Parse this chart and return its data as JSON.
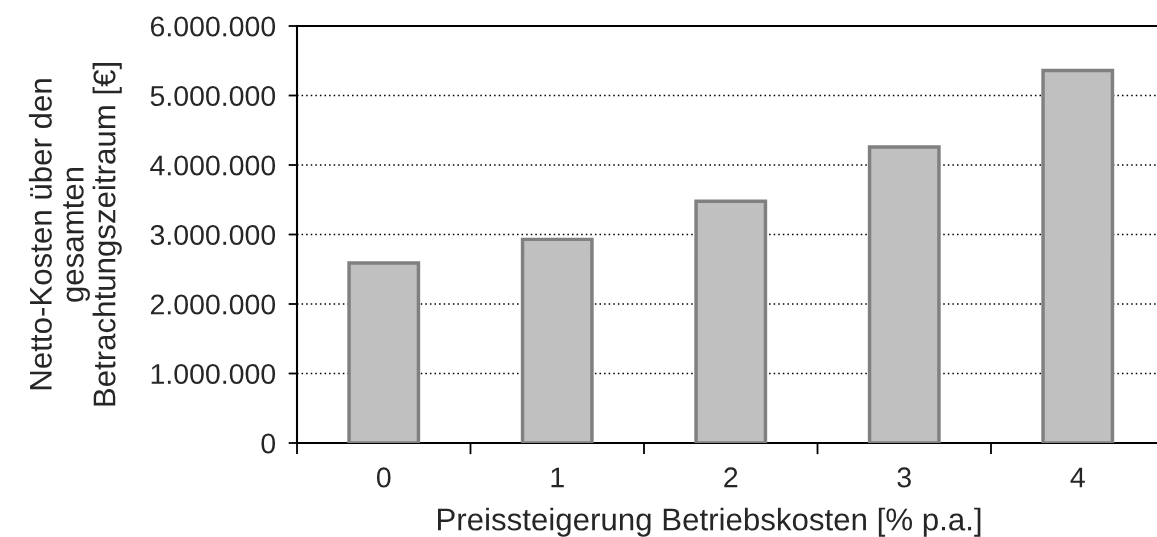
{
  "chart_data": {
    "type": "bar",
    "xlabel": "Preissteigerung Betriebskosten [% p.a.]",
    "ylabel": "Netto-Kosten über den\ngesamten\nBetrachtungszeitraum [€]",
    "categories": [
      "0",
      "1",
      "2",
      "3",
      "4"
    ],
    "values": [
      2590000,
      2930000,
      3480000,
      4260000,
      5360000
    ],
    "color": "#c0c0c0",
    "ylim": [
      0,
      6000000
    ],
    "yticks": [
      {
        "value": 0,
        "label": "0"
      },
      {
        "value": 1000000,
        "label": "1.000.000"
      },
      {
        "value": 2000000,
        "label": "2.000.000"
      },
      {
        "value": 3000000,
        "label": "3.000.000"
      },
      {
        "value": 4000000,
        "label": "4.000.000"
      },
      {
        "value": 5000000,
        "label": "5.000.000"
      },
      {
        "value": 6000000,
        "label": "6.000.000"
      }
    ],
    "grid": "y",
    "legend": false
  }
}
